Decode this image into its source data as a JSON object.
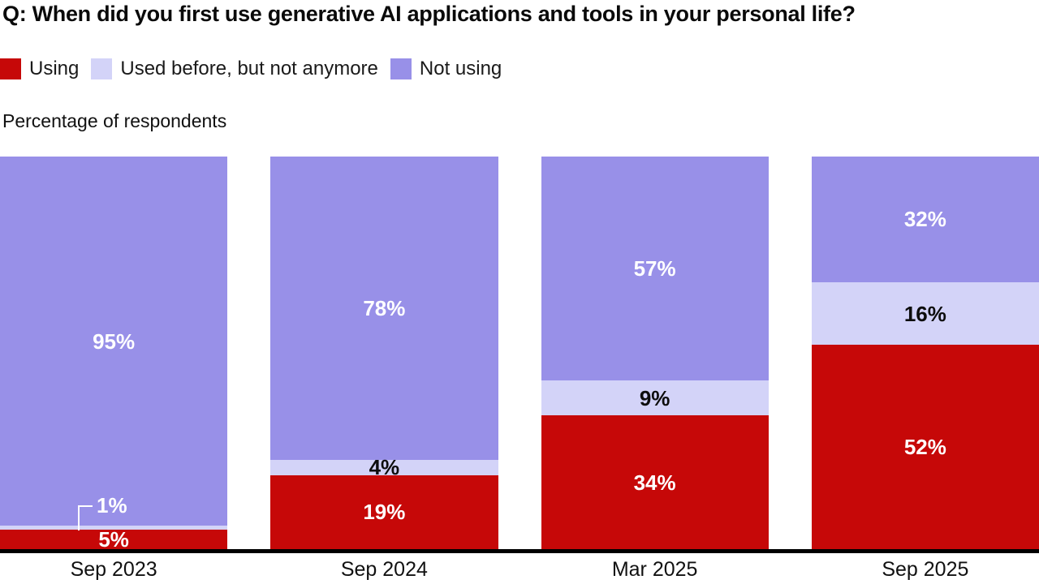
{
  "title": "Q: When did you first use generative AI applications and tools in your personal life?",
  "subtitle": "Percentage of respondents",
  "legend": [
    {
      "label": "Using",
      "color": "#C60808"
    },
    {
      "label": "Used before, but not anymore",
      "color": "#D3D3F8"
    },
    {
      "label": "Not using",
      "color": "#9890E8"
    }
  ],
  "bars": [
    {
      "category": "Sep 2023",
      "using": "5%",
      "used_before": "1%",
      "not_using": "95%"
    },
    {
      "category": "Sep 2024",
      "using": "19%",
      "used_before": "4%",
      "not_using": "78%"
    },
    {
      "category": "Mar 2025",
      "using": "34%",
      "used_before": "9%",
      "not_using": "57%"
    },
    {
      "category": "Sep 2025",
      "using": "52%",
      "used_before": "16%",
      "not_using": "32%"
    }
  ],
  "chart_data": {
    "type": "bar",
    "stacked": true,
    "orientation": "vertical",
    "title": "Q: When did you first use generative AI applications and tools in your personal life?",
    "ylabel": "Percentage of respondents",
    "value_suffix": "%",
    "ylim": [
      0,
      100
    ],
    "grid": false,
    "legend_position": "top",
    "categories": [
      "Sep 2023",
      "Sep 2024",
      "Mar 2025",
      "Sep 2025"
    ],
    "series": [
      {
        "name": "Using",
        "color": "#C60808",
        "values": [
          5,
          19,
          34,
          52
        ]
      },
      {
        "name": "Used before, but not anymore",
        "color": "#D3D3F8",
        "values": [
          1,
          4,
          9,
          16
        ]
      },
      {
        "name": "Not using",
        "color": "#9890E8",
        "values": [
          95,
          78,
          57,
          32
        ]
      }
    ]
  }
}
